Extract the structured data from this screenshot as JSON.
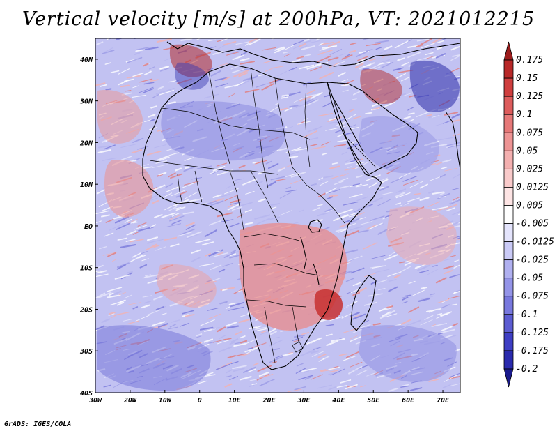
{
  "title": "Vertical velocity [m/s] at 200hPa, VT: 2021012215",
  "credit": "GrADS: IGES/COLA",
  "map": {
    "lon_range": [
      -30,
      75
    ],
    "lat_range": [
      -40,
      45
    ],
    "x_ticks": [
      "30W",
      "20W",
      "10W",
      "0",
      "10E",
      "20E",
      "30E",
      "40E",
      "50E",
      "60E",
      "70E"
    ],
    "y_ticks": [
      "40N",
      "30N",
      "20N",
      "10N",
      "EQ",
      "10S",
      "20S",
      "30S",
      "40S"
    ],
    "colors": {
      "rise_strong": "#b4282d",
      "rise_weak": "#f29b9b",
      "sink_weak": "#a8a8f0",
      "sink_strong": "#3c32b4",
      "coastline": "#000000"
    }
  },
  "colorbar": {
    "levels": [
      "0.175",
      "0.15",
      "0.125",
      "0.1",
      "0.075",
      "0.05",
      "0.025",
      "0.0125",
      "0.005",
      "-0.005",
      "-0.0125",
      "-0.025",
      "-0.05",
      "-0.075",
      "-0.1",
      "-0.125",
      "-0.175",
      "-0.2"
    ],
    "colors": [
      "#9c1c1c",
      "#b82828",
      "#cf3e3e",
      "#dd5c5c",
      "#e67878",
      "#ee9494",
      "#f4b0b0",
      "#f9caca",
      "#fde4e4",
      "#ffffff",
      "#e4e4fc",
      "#cacaf6",
      "#b0b0f0",
      "#9494e8",
      "#7878de",
      "#5c5cd2",
      "#3e3ec4",
      "#2a2aae",
      "#1a1a8c"
    ]
  }
}
